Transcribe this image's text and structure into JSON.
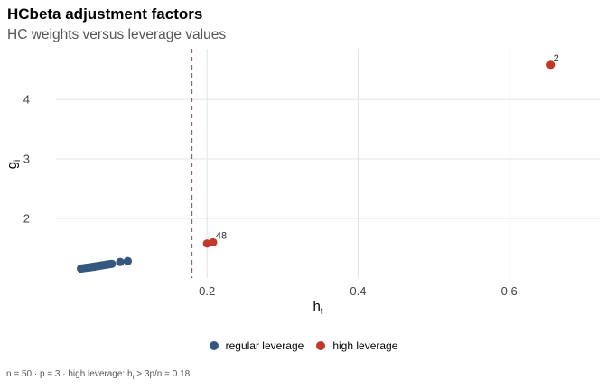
{
  "chart_data": {
    "type": "scatter",
    "title": "HCbeta adjustment factors",
    "subtitle": "HC weights versus leverage values",
    "xlabel": {
      "main": "h",
      "sub": "t"
    },
    "ylabel": {
      "main": "g",
      "sub": "i"
    },
    "xlim": [
      0.0,
      0.72
    ],
    "ylim": [
      1.0,
      4.85
    ],
    "x_ticks": [
      0.2,
      0.4,
      0.6
    ],
    "x_tick_labels": [
      "0.2",
      "0.4",
      "0.6"
    ],
    "y_ticks": [
      2,
      3,
      4
    ],
    "y_tick_labels": [
      "2",
      "3",
      "4"
    ],
    "grid": true,
    "threshold": {
      "x": 0.18,
      "style": "dashed",
      "color": "#c0504d"
    },
    "series": [
      {
        "name": "regular leverage",
        "color": "#34577f",
        "points": [
          {
            "x": 0.033,
            "y": 1.16
          },
          {
            "x": 0.036,
            "y": 1.165
          },
          {
            "x": 0.038,
            "y": 1.168
          },
          {
            "x": 0.04,
            "y": 1.172
          },
          {
            "x": 0.042,
            "y": 1.175
          },
          {
            "x": 0.044,
            "y": 1.178
          },
          {
            "x": 0.046,
            "y": 1.182
          },
          {
            "x": 0.048,
            "y": 1.186
          },
          {
            "x": 0.05,
            "y": 1.19
          },
          {
            "x": 0.052,
            "y": 1.195
          },
          {
            "x": 0.054,
            "y": 1.198
          },
          {
            "x": 0.056,
            "y": 1.203
          },
          {
            "x": 0.058,
            "y": 1.207
          },
          {
            "x": 0.06,
            "y": 1.211
          },
          {
            "x": 0.062,
            "y": 1.215
          },
          {
            "x": 0.064,
            "y": 1.219
          },
          {
            "x": 0.066,
            "y": 1.223
          },
          {
            "x": 0.068,
            "y": 1.228
          },
          {
            "x": 0.071,
            "y": 1.233
          },
          {
            "x": 0.074,
            "y": 1.238
          },
          {
            "x": 0.085,
            "y": 1.27
          },
          {
            "x": 0.095,
            "y": 1.285
          }
        ]
      },
      {
        "name": "high leverage",
        "color": "#c0392b",
        "points": [
          {
            "x": 0.2,
            "y": 1.58,
            "label": ""
          },
          {
            "x": 0.208,
            "y": 1.6,
            "label": "48"
          },
          {
            "x": 0.655,
            "y": 4.58,
            "label": "2"
          }
        ]
      }
    ],
    "legend_position": "bottom"
  },
  "caption": {
    "part1": "n = 50  ·  p = 3  ·  high leverage: h",
    "sub": "t",
    "part2": " > 3p/n = 0.18"
  }
}
